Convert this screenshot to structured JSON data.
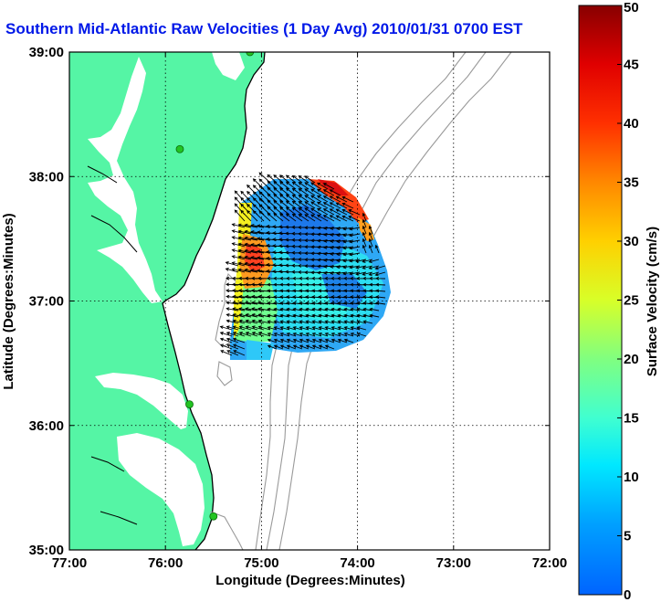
{
  "title": "Southern Mid-Atlantic Raw Velocities (1 Day Avg) 2010/01/31 0700 EST",
  "x_axis": {
    "label": "Longitude (Degrees:Minutes)",
    "ticks": [
      "77:00",
      "76:00",
      "75:00",
      "74:00",
      "73:00",
      "72:00"
    ],
    "range_deg_west": [
      77,
      72
    ]
  },
  "y_axis": {
    "label": "Latitude (Degrees:Minutes)",
    "ticks": [
      "35:00",
      "36:00",
      "37:00",
      "38:00",
      "39:00"
    ],
    "range_deg_north": [
      35,
      39
    ]
  },
  "colorbar": {
    "label": "Surface Velocity (cm/s)",
    "ticks": [
      "0",
      "5",
      "10",
      "15",
      "20",
      "25",
      "30",
      "35",
      "40",
      "45",
      "50"
    ],
    "range": [
      0,
      50
    ],
    "colormap": "jet"
  },
  "colors": {
    "land": "#55f5a5",
    "title": "#0018e8",
    "contour": "#9a9a9a",
    "station": "#22c422"
  },
  "grid": true,
  "stations": [
    {
      "lon": 75.12,
      "lat": 39.0
    },
    {
      "lon": 75.85,
      "lat": 38.22
    },
    {
      "lon": 75.75,
      "lat": 36.17
    },
    {
      "lon": 75.5,
      "lat": 35.27
    }
  ]
}
